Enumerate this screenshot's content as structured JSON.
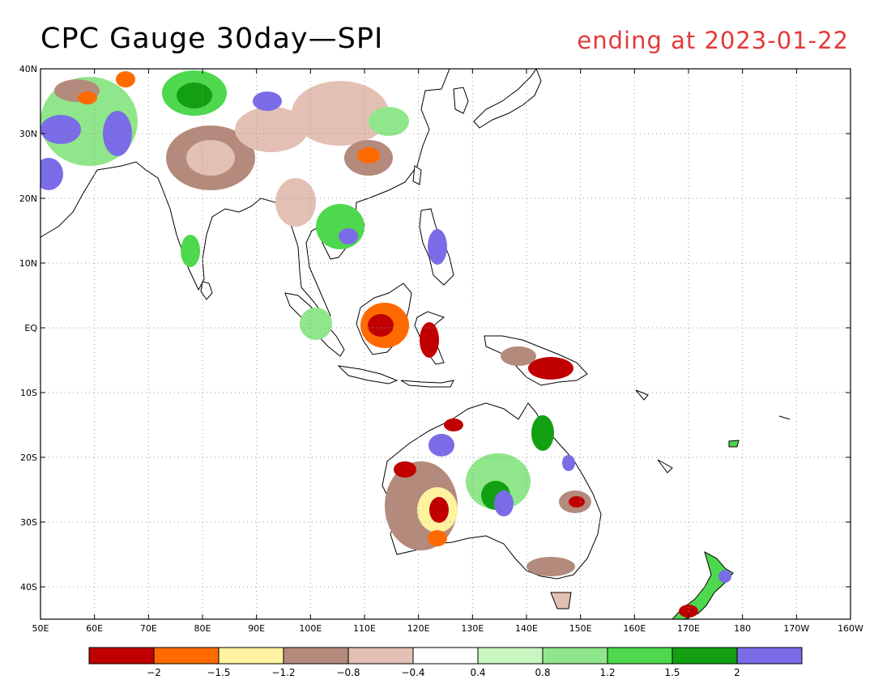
{
  "title": "CPC Gauge 30day—SPI",
  "subtitle": "ending at 2023-01-22",
  "axes": {
    "lat_labels": [
      "40N",
      "30N",
      "20N",
      "10N",
      "EQ",
      "10S",
      "20S",
      "30S",
      "40S"
    ],
    "lon_labels": [
      "50E",
      "60E",
      "70E",
      "80E",
      "90E",
      "100E",
      "110E",
      "120E",
      "130E",
      "140E",
      "150E",
      "160E",
      "170E",
      "180",
      "170W",
      "160W"
    ],
    "lon_range": [
      50,
      200
    ],
    "lat_range": [
      -45,
      40
    ],
    "grid": "dotted"
  },
  "colors": {
    "accent_title": "#e23a3a",
    "ocean": "#ffffff",
    "coast": "#000000"
  },
  "legend": {
    "placement": "bottom",
    "colors": [
      "#c00000",
      "#ff6a00",
      "#fff3a0",
      "#b48a7c",
      "#e3c0b4",
      "#ffffff",
      "#c9f5c0",
      "#90e68a",
      "#4ed84e",
      "#12a012",
      "#7a6ce6"
    ],
    "labels": [
      "-2",
      "-1.5",
      "-1.2",
      "-0.8",
      "-0.4",
      "0.4",
      "0.8",
      "1.2",
      "1.5",
      "2"
    ]
  }
}
